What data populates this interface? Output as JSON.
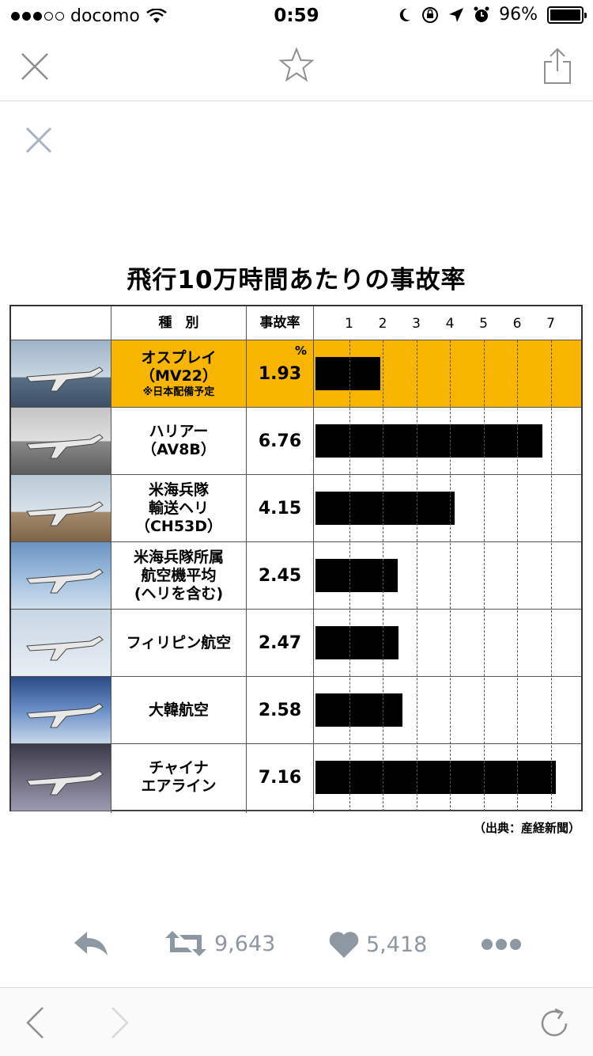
{
  "status_bar": {
    "carrier": "docomo",
    "time": "0:59",
    "battery": "96%"
  },
  "chart_data": {
    "type": "bar",
    "title": "飛行10万時間あたりの事故率",
    "columns": {
      "type": "種　別",
      "rate": "事故率"
    },
    "ticks": [
      "1",
      "2",
      "3",
      "4",
      "5",
      "6",
      "7"
    ],
    "xlim": [
      0,
      7.5
    ],
    "unit": "%",
    "highlight_color": "#f7b500",
    "rows": [
      {
        "name_lines": [
          "オスプレイ",
          "（MV22）"
        ],
        "note": "※日本配備予定",
        "rate": "1.93",
        "value": 1.93,
        "highlight": true
      },
      {
        "name_lines": [
          "ハリアー",
          "（AV8B）"
        ],
        "note": "",
        "rate": "6.76",
        "value": 6.76,
        "highlight": false
      },
      {
        "name_lines": [
          "米海兵隊",
          "輸送ヘリ",
          "（CH53D）"
        ],
        "note": "",
        "rate": "4.15",
        "value": 4.15,
        "highlight": false
      },
      {
        "name_lines": [
          "米海兵隊所属",
          "航空機平均",
          "(ヘリを含む)"
        ],
        "note": "",
        "rate": "2.45",
        "value": 2.45,
        "highlight": false
      },
      {
        "name_lines": [
          "フィリピン航空"
        ],
        "note": "",
        "rate": "2.47",
        "value": 2.47,
        "highlight": false
      },
      {
        "name_lines": [
          "大韓航空"
        ],
        "note": "",
        "rate": "2.58",
        "value": 2.58,
        "highlight": false
      },
      {
        "name_lines": [
          "チャイナ",
          "エアライン"
        ],
        "note": "",
        "rate": "7.16",
        "value": 7.16,
        "highlight": false
      }
    ],
    "source": "（出典：産経新聞）"
  },
  "actions": {
    "retweet_count": "9,643",
    "like_count": "5,418"
  },
  "colors": {
    "action_gray": "#8e98a2",
    "nav_gray": "#c7c7cc"
  }
}
